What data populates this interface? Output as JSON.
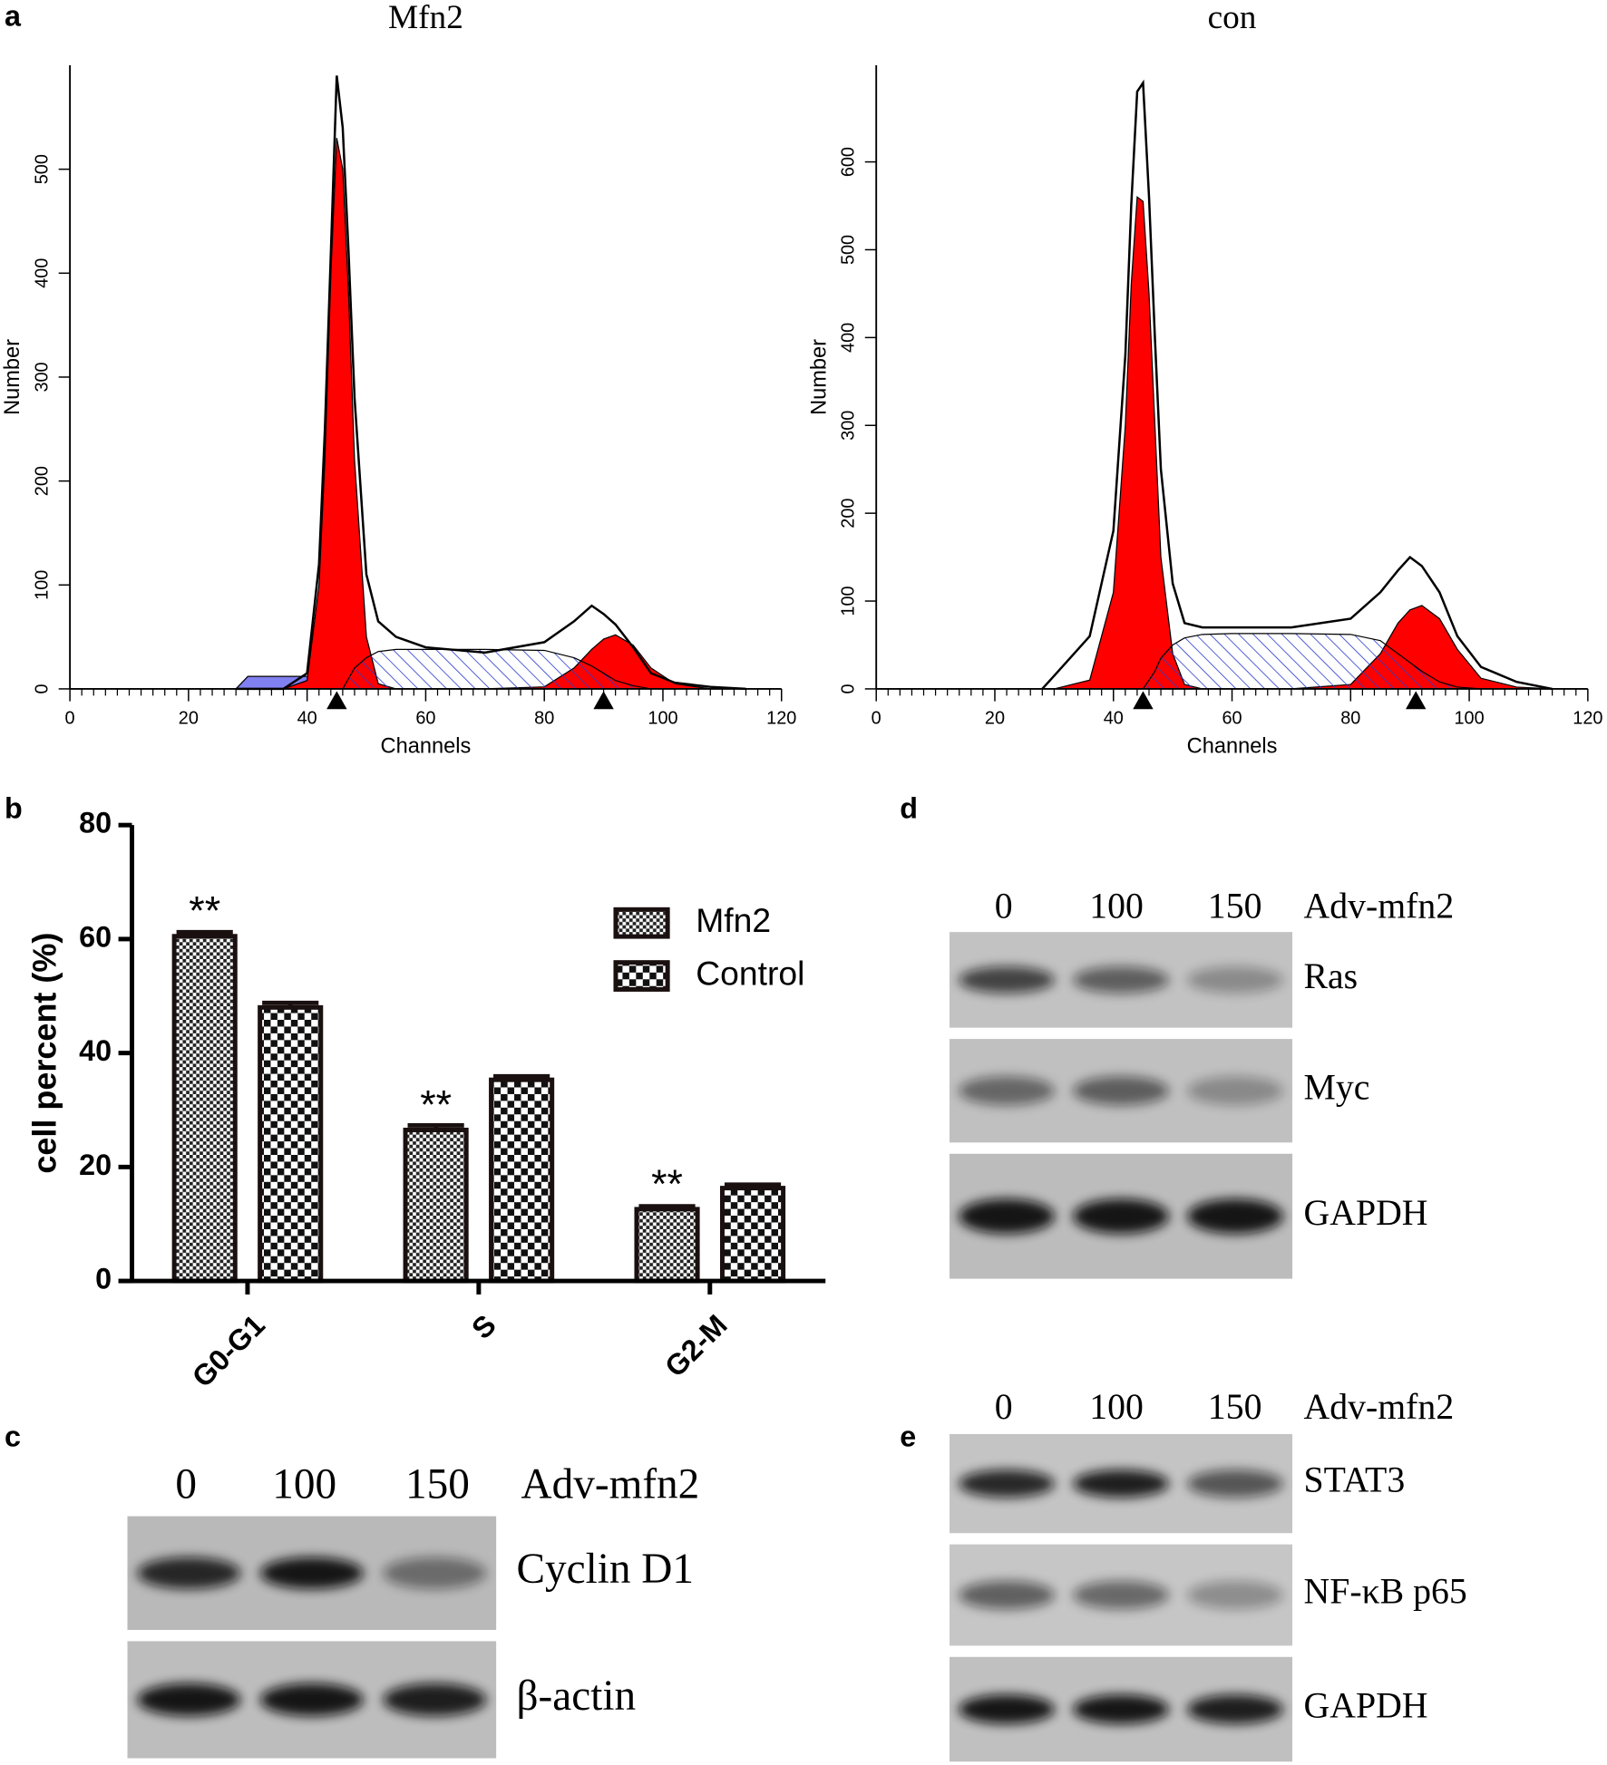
{
  "panel_labels": [
    "a",
    "b",
    "c",
    "d",
    "e"
  ],
  "chart_data": [
    {
      "type": "area",
      "title": "Mfn2",
      "xlabel": "Channels",
      "ylabel": "Number",
      "x": [
        28,
        30,
        36,
        40,
        42,
        43,
        44,
        45,
        46,
        47,
        48,
        50,
        52,
        55,
        60,
        70,
        80,
        85,
        88,
        90,
        92,
        95,
        98,
        102,
        108,
        114
      ],
      "xlim": [
        0,
        120
      ],
      "xticks": [
        0,
        20,
        40,
        60,
        80,
        100,
        120
      ],
      "ylim": [
        0,
        600
      ],
      "yticks": [
        0,
        100,
        200,
        300,
        400,
        500
      ],
      "markers": [
        45,
        90
      ],
      "series": [
        {
          "style": "fill",
          "color": "#8080f0",
          "values": [
            0,
            12,
            12,
            12,
            11,
            10,
            10,
            9,
            9,
            8,
            7,
            4,
            2,
            0,
            0,
            0,
            0,
            0,
            0,
            0,
            0,
            0,
            0,
            0,
            0,
            0
          ]
        },
        {
          "style": "fill",
          "color": "#ff0000",
          "values": [
            0,
            0,
            0,
            8,
            100,
            220,
            400,
            530,
            500,
            380,
            220,
            50,
            5,
            0,
            0,
            0,
            0,
            0,
            0,
            0,
            0,
            0,
            0,
            0,
            0,
            0
          ]
        },
        {
          "style": "fill",
          "color": "#ff0000",
          "values": [
            0,
            0,
            0,
            0,
            0,
            0,
            0,
            0,
            0,
            0,
            0,
            0,
            0,
            0,
            0,
            0,
            2,
            20,
            38,
            48,
            52,
            42,
            20,
            5,
            0,
            0
          ]
        },
        {
          "style": "hatch",
          "color": "#2a3ccc",
          "values": [
            0,
            0,
            0,
            0,
            0,
            0,
            0,
            0,
            0,
            10,
            20,
            30,
            36,
            38,
            38,
            38,
            37,
            30,
            22,
            15,
            8,
            3,
            0,
            0,
            0,
            0
          ]
        },
        {
          "style": "line",
          "color": "#000000",
          "values": [
            0,
            0,
            0,
            15,
            120,
            250,
            420,
            590,
            540,
            420,
            280,
            110,
            65,
            50,
            40,
            35,
            45,
            65,
            80,
            72,
            62,
            40,
            15,
            6,
            2,
            0
          ]
        }
      ]
    },
    {
      "type": "area",
      "title": "con",
      "xlabel": "Channels",
      "ylabel": "Number",
      "x": [
        28,
        30,
        36,
        40,
        42,
        43,
        44,
        45,
        46,
        47,
        48,
        50,
        52,
        55,
        60,
        70,
        80,
        85,
        88,
        90,
        92,
        95,
        98,
        102,
        108,
        114
      ],
      "xlim": [
        0,
        120
      ],
      "xticks": [
        0,
        20,
        40,
        60,
        80,
        100,
        120
      ],
      "ylim": [
        0,
        710
      ],
      "yticks": [
        0,
        100,
        200,
        300,
        400,
        500,
        600
      ],
      "markers": [
        45,
        91
      ],
      "series": [
        {
          "style": "fill",
          "color": "#ff0000",
          "values": [
            0,
            0,
            10,
            110,
            300,
            460,
            560,
            555,
            450,
            300,
            150,
            40,
            5,
            0,
            0,
            0,
            0,
            0,
            0,
            0,
            0,
            0,
            0,
            0,
            0,
            0
          ]
        },
        {
          "style": "fill",
          "color": "#ff0000",
          "values": [
            0,
            0,
            0,
            0,
            0,
            0,
            0,
            0,
            0,
            0,
            0,
            0,
            0,
            0,
            0,
            0,
            5,
            40,
            75,
            90,
            95,
            80,
            45,
            12,
            2,
            0
          ]
        },
        {
          "style": "hatch",
          "color": "#2a3ccc",
          "values": [
            0,
            0,
            0,
            0,
            0,
            0,
            0,
            0,
            10,
            20,
            35,
            50,
            58,
            62,
            63,
            63,
            62,
            55,
            40,
            30,
            20,
            8,
            2,
            0,
            0,
            0
          ]
        },
        {
          "style": "line",
          "color": "#000000",
          "values": [
            0,
            15,
            60,
            180,
            380,
            550,
            680,
            690,
            560,
            400,
            250,
            120,
            75,
            70,
            70,
            70,
            80,
            110,
            135,
            150,
            140,
            110,
            60,
            25,
            8,
            0
          ]
        }
      ]
    },
    {
      "type": "bar",
      "ylabel": "cell percent (%)",
      "categories": [
        "G0-G1",
        "S",
        "G2-M"
      ],
      "ylim": [
        0,
        80
      ],
      "yticks": [
        0,
        20,
        40,
        60,
        80
      ],
      "series": [
        {
          "name": "Mfn2",
          "pattern": "fine",
          "values": [
            60.5,
            26.5,
            12.6
          ],
          "errors": [
            0.7,
            0.8,
            0.5
          ],
          "value_annotations": [
            "**",
            "**",
            "**"
          ]
        },
        {
          "name": "Control",
          "pattern": "coarse",
          "values": [
            48,
            35.3,
            16.3
          ],
          "errors": [
            0.8,
            0.6,
            0.6
          ]
        }
      ]
    }
  ],
  "blots": [
    {
      "lanes": [
        "0",
        "100",
        "150"
      ],
      "treatment": "Adv-mfn2",
      "rows": [
        "Cyclin D1",
        "β-actin"
      ]
    },
    {
      "lanes": [
        "0",
        "100",
        "150"
      ],
      "treatment": "Adv-mfn2",
      "rows": [
        "Ras",
        "Myc",
        "GAPDH"
      ]
    },
    {
      "lanes": [
        "0",
        "100",
        "150"
      ],
      "treatment": "Adv-mfn2",
      "rows": [
        "STAT3",
        "NF-κB p65",
        "GAPDH"
      ]
    }
  ]
}
